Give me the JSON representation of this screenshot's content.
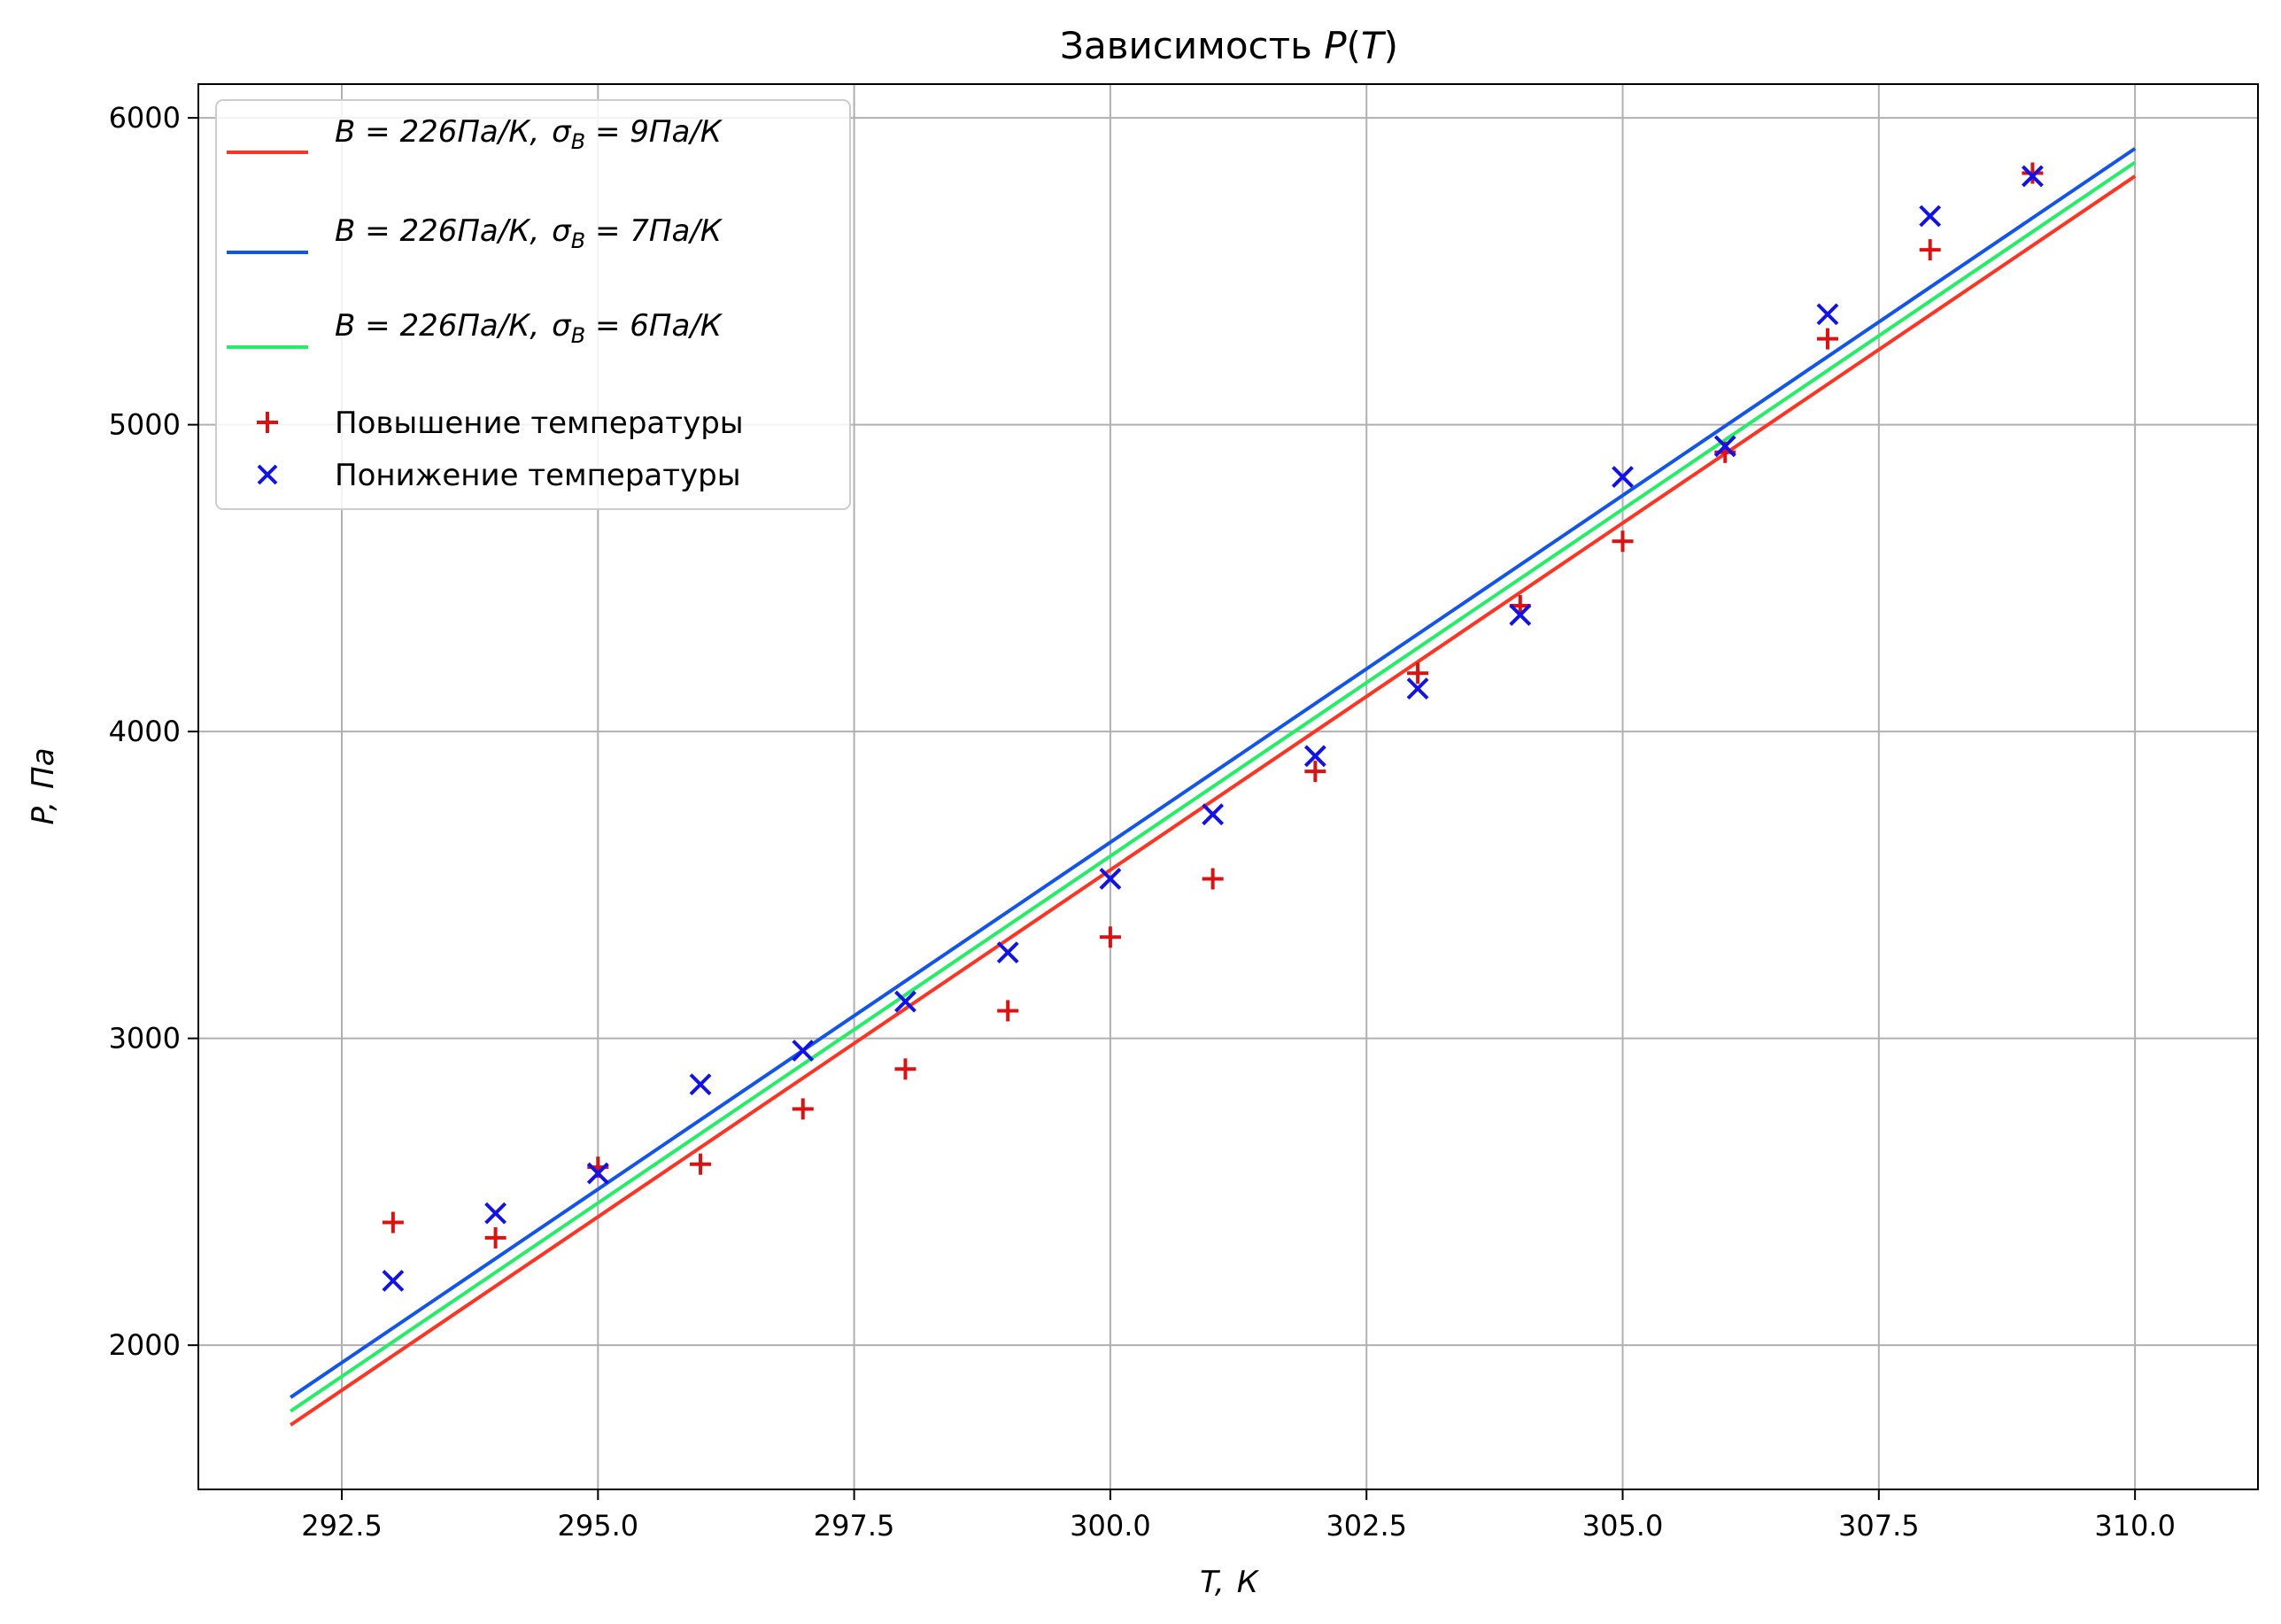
{
  "chart_data": {
    "type": "scatter",
    "title": "Зависимость P(T)",
    "xlabel": "T, К",
    "ylabel": "P, Па",
    "xlim": [
      291.1,
      311.2
    ],
    "ylim": [
      1530,
      6110
    ],
    "xticks": [
      292.5,
      295.0,
      297.5,
      300.0,
      302.5,
      305.0,
      307.5,
      310.0
    ],
    "xtick_labels": [
      "292.5",
      "295.0",
      "297.5",
      "300.0",
      "302.5",
      "305.0",
      "307.5",
      "310.0"
    ],
    "yticks": [
      2000,
      3000,
      4000,
      5000,
      6000
    ],
    "ytick_labels": [
      "2000",
      "3000",
      "4000",
      "5000",
      "6000"
    ],
    "grid": true,
    "legend_position": "top-left",
    "lines": [
      {
        "name": "B = 226Па/К,  σ_B = 9Па/К",
        "color": "#ff3322",
        "x": [
          292,
          310
        ],
        "y": [
          1740,
          5810
        ]
      },
      {
        "name": "B = 226Па/К,  σ_B = 7Па/К",
        "color": "#1155ee",
        "x": [
          292,
          310
        ],
        "y": [
          1830,
          5900
        ]
      },
      {
        "name": "B = 226Па/К,  σ_B = 6Па/К",
        "color": "#22ee66",
        "x": [
          292,
          310
        ],
        "y": [
          1785,
          5855
        ]
      }
    ],
    "series": [
      {
        "name": "Повышение температуры",
        "marker": "+",
        "color": "#dd1111",
        "x": [
          293,
          294,
          295,
          296,
          297,
          298,
          299,
          300,
          301,
          302,
          303,
          304,
          305,
          306,
          307,
          308,
          309
        ],
        "y": [
          2400,
          2350,
          2580,
          2590,
          2770,
          2900,
          3090,
          3330,
          3520,
          3870,
          4190,
          4410,
          4620,
          4910,
          5280,
          5570,
          5820
        ]
      },
      {
        "name": "Понижение температуры",
        "marker": "x",
        "color": "#1111ee",
        "x": [
          293,
          294,
          295,
          296,
          297,
          298,
          299,
          300,
          301,
          302,
          303,
          304,
          305,
          306,
          307,
          308,
          309
        ],
        "y": [
          2210,
          2430,
          2560,
          2850,
          2960,
          3120,
          3280,
          3520,
          3730,
          3920,
          4140,
          4380,
          4830,
          4930,
          5360,
          5680,
          5810
        ]
      }
    ]
  },
  "legend": {
    "line_items": [
      {
        "B_label": "B",
        "B_value": "226Па/К,",
        "sigma": "σ",
        "sigma_sub": "B",
        "sigma_value": "9Па/К"
      },
      {
        "B_label": "B",
        "B_value": "226Па/К,",
        "sigma": "σ",
        "sigma_sub": "B",
        "sigma_value": "7Па/К"
      },
      {
        "B_label": "B",
        "B_value": "226Па/К,",
        "sigma": "σ",
        "sigma_sub": "B",
        "sigma_value": "6Па/К"
      }
    ],
    "scatter_items": [
      "Повышение температуры",
      "Понижение температуры"
    ]
  },
  "title_parts": {
    "prefix": "Зависимость",
    "func": "P",
    "arg": "T"
  },
  "xlabel_parts": {
    "symbol": "T,",
    "unit": "К"
  },
  "ylabel_parts": {
    "symbol": "P,",
    "unit": "Па"
  }
}
